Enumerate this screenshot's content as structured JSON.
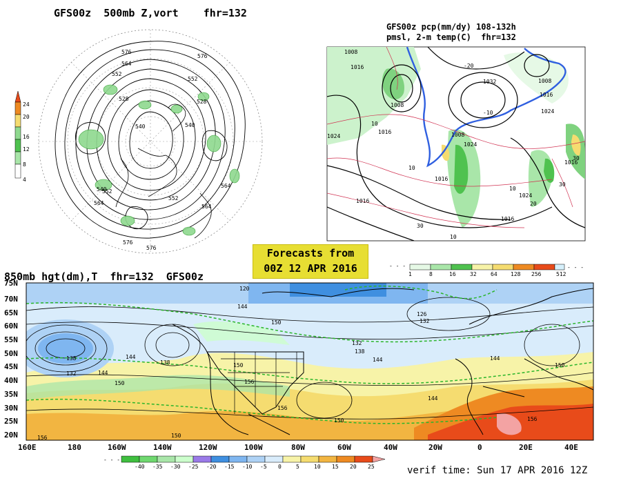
{
  "panel_500mb": {
    "title": "GFS00z  500mb Z,vort    fhr=132",
    "colorbar_ticks": [
      "24",
      "20",
      "16",
      "12",
      "8",
      "4"
    ],
    "contour_labels": [
      "576",
      "576",
      "564",
      "552",
      "552",
      "528",
      "540",
      "528",
      "540",
      "564",
      "552",
      "564",
      "576",
      "540",
      "552",
      "564",
      "576"
    ]
  },
  "panel_precip": {
    "title_line1": "GFS00z pcp(mm/dy) 108-132h",
    "title_line2": "pmsl, 2-m temp(C)  fhr=132",
    "pressure_labels": [
      "1008",
      "1008",
      "1016",
      "1024",
      "1032",
      "1008",
      "1016",
      "1016",
      "1016",
      "1024",
      "1024",
      "1024",
      "1016",
      "1016",
      "1008",
      "1016"
    ],
    "temp_labels": [
      "10",
      "-10",
      "10",
      "10",
      "20",
      "30",
      "30",
      "10",
      "30",
      "-20"
    ],
    "colorbar_ticks": [
      "1",
      "8",
      "16",
      "32",
      "64",
      "128",
      "256",
      "512"
    ]
  },
  "forecast_box": {
    "line1": "Forecasts from",
    "line2": "00Z 12 APR 2016"
  },
  "panel_850mb": {
    "title": "850mb hgt(dm),T  fhr=132  GFS00z",
    "lat_labels": [
      "75N",
      "70N",
      "65N",
      "60N",
      "55N",
      "50N",
      "45N",
      "40N",
      "35N",
      "30N",
      "25N",
      "20N"
    ],
    "lon_labels": [
      "160E",
      "180",
      "160W",
      "140W",
      "120W",
      "100W",
      "80W",
      "60W",
      "40W",
      "20W",
      "0",
      "20E",
      "40E"
    ],
    "contour_labels": [
      "120",
      "144",
      "150",
      "138",
      "132",
      "138",
      "144",
      "144",
      "150",
      "156",
      "132",
      "138",
      "144",
      "150",
      "156",
      "126",
      "132",
      "144",
      "144",
      "150",
      "156",
      "150",
      "150",
      "156"
    ],
    "colorbar_ticks": [
      "-40",
      "-35",
      "-30",
      "-25",
      "-20",
      "-15",
      "-10",
      "-5",
      "0",
      "5",
      "10",
      "15",
      "20",
      "25"
    ],
    "colorbar_colors": [
      "#3fbf3f",
      "#6fd86f",
      "#a9e6a9",
      "#ccffcc",
      "#9a7ae8",
      "#3f8fe0",
      "#7fb6f0",
      "#aed2f5",
      "#d9ecfb",
      "#f7f3a8",
      "#f5dc70",
      "#f2b541",
      "#ee8a22",
      "#e84b1a",
      "#f3a3a3"
    ],
    "verif_text": "verif time: Sun 17 APR 2016 12Z"
  }
}
